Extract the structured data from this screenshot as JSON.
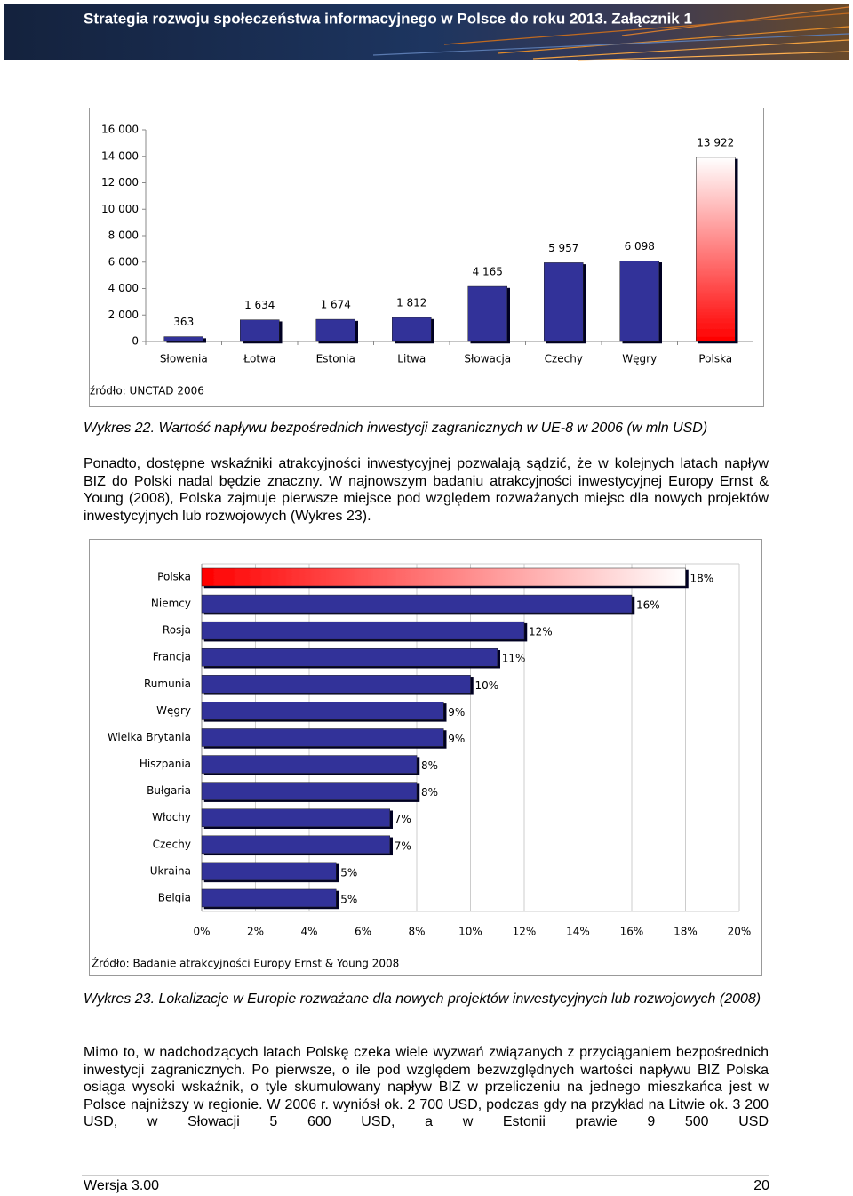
{
  "header": {
    "title": "Strategia rozwoju społeczeństwa informacyjnego w Polsce do roku 2013. Załącznik 1"
  },
  "chart_data": [
    {
      "type": "bar",
      "categories": [
        "Słowenia",
        "Łotwa",
        "Estonia",
        "Litwa",
        "Słowacja",
        "Czechy",
        "Węgry",
        "Polska"
      ],
      "values": [
        363,
        1634,
        1674,
        1812,
        4165,
        5957,
        6098,
        13922
      ],
      "value_labels": [
        "363",
        "1 634",
        "1 674",
        "1 812",
        "4 165",
        "5 957",
        "6 098",
        "13 922"
      ],
      "ylim": [
        0,
        16000
      ],
      "yticks": [
        0,
        {
          "value": 2000,
          "label": "2 000"
        },
        {
          "value": 4000,
          "label": "4 000"
        },
        {
          "value": 6000,
          "label": "6 000"
        },
        {
          "value": 8000,
          "label": "8 000"
        },
        {
          "value": 10000,
          "label": "10 000"
        },
        {
          "value": 12000,
          "label": "12 000"
        },
        {
          "value": 14000,
          "label": "14 000"
        },
        {
          "value": 16000,
          "label": "16 000"
        }
      ],
      "color": "#333399",
      "highlight": {
        "index": 7,
        "colors": [
          "#ff0000",
          "#ffffff"
        ]
      },
      "grid": false,
      "source": "źródło: UNCTAD 2006"
    },
    {
      "type": "barh",
      "categories": [
        "Polska",
        "Niemcy",
        "Rosja",
        "Francja",
        "Rumunia",
        "Węgry",
        "Wielka Brytania",
        "Hiszpania",
        "Bułgaria",
        "Włochy",
        "Czechy",
        "Ukraina",
        "Belgia"
      ],
      "values": [
        18,
        16,
        12,
        11,
        10,
        9,
        9,
        8,
        8,
        7,
        7,
        5,
        5
      ],
      "value_labels": [
        "18%",
        "16%",
        "12%",
        "11%",
        "10%",
        "9%",
        "9%",
        "8%",
        "8%",
        "7%",
        "7%",
        "5%",
        "5%"
      ],
      "xlim": [
        0,
        20
      ],
      "xticks": [
        {
          "value": 0,
          "label": "0%"
        },
        {
          "value": 2,
          "label": "2%"
        },
        {
          "value": 4,
          "label": "4%"
        },
        {
          "value": 6,
          "label": "6%"
        },
        {
          "value": 8,
          "label": "8%"
        },
        {
          "value": 10,
          "label": "10%"
        },
        {
          "value": 12,
          "label": "12%"
        },
        {
          "value": 14,
          "label": "14%"
        },
        {
          "value": 16,
          "label": "16%"
        },
        {
          "value": 18,
          "label": "18%"
        },
        {
          "value": 20,
          "label": "20%"
        }
      ],
      "color": "#333399",
      "highlight": {
        "index": 0,
        "colors": [
          "#ff0000",
          "#ffffff"
        ]
      },
      "grid": true,
      "source": "Źródło: Badanie atrakcyjności Europy Ernst & Young 2008"
    }
  ],
  "captions": [
    "Wykres 22. Wartość napływu bezpośrednich inwestycji zagranicznych w UE-8 w 2006 (w mln USD)",
    "Wykres 23. Lokalizacje w Europie rozważane dla nowych projektów inwestycyjnych lub rozwojowych (2008)"
  ],
  "paragraphs": [
    "Ponadto, dostępne wskaźniki atrakcyjności inwestycyjnej pozwalają sądzić, że w kolejnych latach napływ BIZ do Polski nadal będzie znaczny. W najnowszym badaniu atrakcyjności inwestycyjnej Europy Ernst & Young (2008), Polska zajmuje pierwsze miejsce pod względem rozważanych miejsc dla nowych projektów inwestycyjnych lub rozwojowych (Wykres 23).",
    "Mimo to, w nadchodzących latach Polskę czeka wiele wyzwań związanych z przyciąganiem bezpośrednich inwestycji zagranicznych. Po pierwsze, o ile pod względem bezwzględnych wartości napływu BIZ Polska osiąga wysoki wskaźnik, o tyle skumulowany napływ BIZ w przeliczeniu na jednego mieszkańca jest w Polsce najniższy w regionie. W 2006 r. wyniósł ok. 2 700 USD, podczas gdy na przykład na Litwie ok. 3 200 USD, w Słowacji 5 600 USD, a w Estonii prawie 9 500 USD"
  ],
  "footer": {
    "version": "Wersja 3.00",
    "page": "20"
  }
}
